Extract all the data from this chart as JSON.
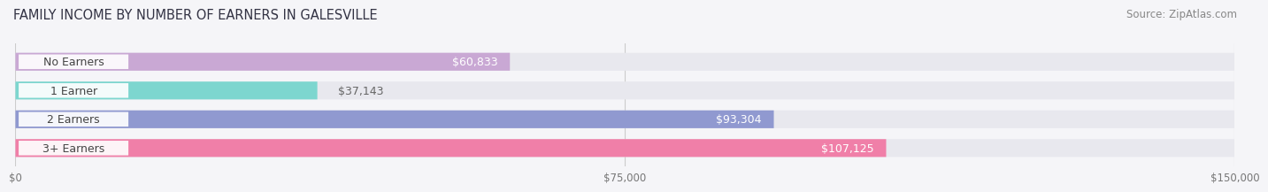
{
  "title": "FAMILY INCOME BY NUMBER OF EARNERS IN GALESVILLE",
  "source": "Source: ZipAtlas.com",
  "categories": [
    "No Earners",
    "1 Earner",
    "2 Earners",
    "3+ Earners"
  ],
  "values": [
    60833,
    37143,
    93304,
    107125
  ],
  "value_labels": [
    "$60,833",
    "$37,143",
    "$93,304",
    "$107,125"
  ],
  "bar_colors": [
    "#c9a8d4",
    "#7dd6cf",
    "#9099d0",
    "#f07fa8"
  ],
  "bar_bg_color": "#e8e8ee",
  "xlim": [
    0,
    150000
  ],
  "xticks": [
    0,
    75000,
    150000
  ],
  "xtick_labels": [
    "$0",
    "$75,000",
    "$150,000"
  ],
  "background_color": "#f5f5f8",
  "title_fontsize": 10.5,
  "source_fontsize": 8.5,
  "label_fontsize": 9,
  "value_fontsize": 9,
  "bar_height": 0.62
}
